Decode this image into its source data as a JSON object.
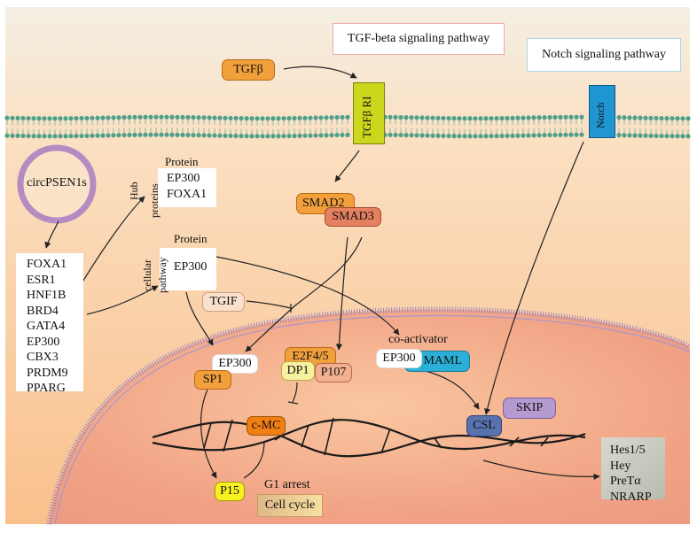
{
  "titles": {
    "tgf_pathway": "TGF-beta signaling pathway",
    "notch_pathway": "Notch signaling pathway"
  },
  "circ": "circPSEN1s",
  "targets": [
    "FOXA1",
    "ESR1",
    "HNF1B",
    "BRD4",
    "GATA4",
    "EP300",
    "CBX3",
    "PRDM9",
    "PPARG"
  ],
  "hub_box": {
    "header": "Protein",
    "side_label_1": "Hub",
    "side_label_2": "proteins",
    "items": [
      "EP300",
      "FOXA1"
    ]
  },
  "cell_box": {
    "header": "Protein",
    "side_label_1": "cellular",
    "side_label_2": "pathway",
    "item": "EP300"
  },
  "nodes": {
    "tgfb": "TGFβ",
    "tgfb_r1": "TGFβ RI",
    "notch": "Notch",
    "smad2": "SMAD2",
    "smad3": "SMAD3",
    "tgif": "TGIF",
    "ep300_sp1": "EP300",
    "sp1": "SP1",
    "e2f45": "E2F4/5",
    "dp1": "DP1",
    "p107": "P107",
    "coactivator": "co-activator",
    "ep300_maml": "EP300",
    "maml": "MAML",
    "skip": "SKIP",
    "csl": "CSL",
    "cmc": "c-MC",
    "p15": "P15",
    "g1_arrest": "G1 arrest",
    "cell_cycle": "Cell cycle"
  },
  "notch_targets": [
    "Hes1/5",
    "Hey",
    "PreTα",
    "NRARP"
  ],
  "colors": {
    "orange_pill": "#f2a03c",
    "smad3": "#e58060",
    "receptor": "#ccd61c",
    "notch": "#1f95d2",
    "maml": "#2ab0d8",
    "csl": "#5872b0",
    "skip": "#b49ad0",
    "p15": "#f8f020",
    "dp1": "#f6f0a0"
  }
}
